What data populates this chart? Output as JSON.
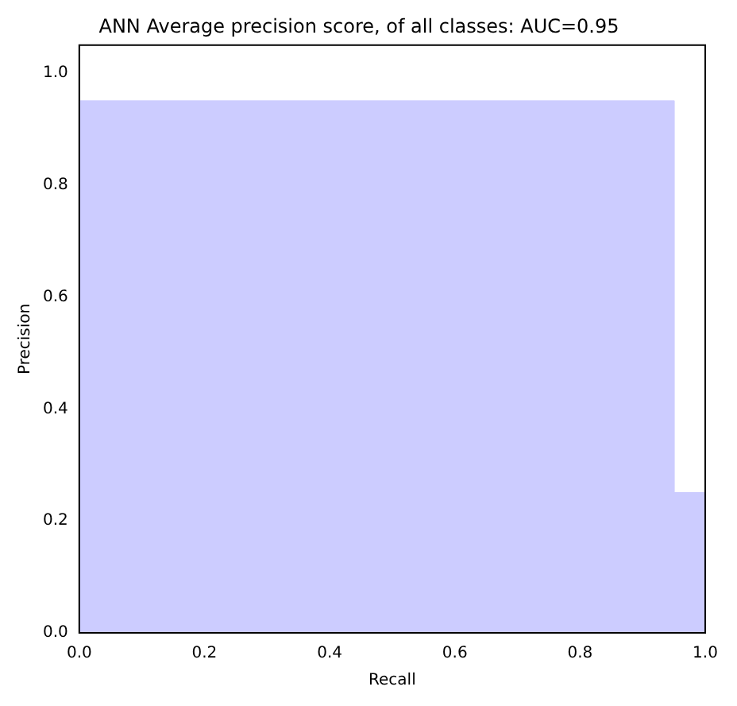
{
  "chart_data": {
    "type": "step",
    "title": "ANN Average precision score, of all classes: AUC=0.95",
    "xlabel": "Recall",
    "ylabel": "Precision",
    "x": [
      0,
      0.95,
      1.0
    ],
    "series": [
      {
        "color": "#ccccff",
        "values": [
          0.95,
          0.25,
          0.25
        ]
      }
    ],
    "xlim": [
      0,
      1.0
    ],
    "ylim": [
      0,
      1.05
    ],
    "xticks": [
      {
        "value": 0,
        "label": "0.0"
      },
      {
        "value": 0.2,
        "label": "0.2"
      },
      {
        "value": 0.4,
        "label": "0.4"
      },
      {
        "value": 0.6,
        "label": "0.6"
      },
      {
        "value": 0.8,
        "label": "0.8"
      },
      {
        "value": 1.0,
        "label": "1.0"
      }
    ],
    "yticks": [
      {
        "value": 0,
        "label": "0.0"
      },
      {
        "value": 0.2,
        "label": "0.2"
      },
      {
        "value": 0.4,
        "label": "0.4"
      },
      {
        "value": 0.6,
        "label": "0.6"
      },
      {
        "value": 0.8,
        "label": "0.8"
      },
      {
        "value": 1.0,
        "label": "1.0"
      }
    ],
    "grid": false,
    "legend": false
  }
}
